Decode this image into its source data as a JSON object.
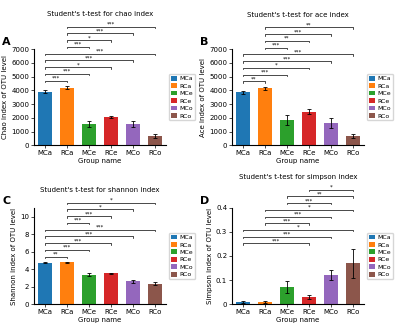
{
  "chart_data": [
    {
      "type": "bar",
      "panel_label": "A",
      "title": "Student's t-test for chao index",
      "x_label": "Group name",
      "y_label": "Chao index of OTU level",
      "categories": [
        "MCa",
        "RCa",
        "MCe",
        "RCe",
        "MCo",
        "RCo"
      ],
      "values": [
        3900,
        4200,
        1550,
        2050,
        1550,
        700
      ],
      "errors": [
        100,
        120,
        200,
        100,
        250,
        150
      ],
      "colors": [
        "#1f77b4",
        "#ff7f0e",
        "#2ca02c",
        "#d62728",
        "#9467bd",
        "#8c564b"
      ],
      "legend_labels": [
        "MCa",
        "RCa",
        "MCe",
        "RCe",
        "MCo",
        "RCo"
      ],
      "legend": "right",
      "ylim": [
        0,
        7000
      ],
      "yticks": [
        0,
        1000,
        2000,
        3000,
        4000,
        5000,
        6000,
        7000
      ],
      "annotations": [
        {
          "text": "***",
          "between": [
            "MCa",
            "RCa"
          ]
        },
        {
          "text": "***",
          "between": [
            "MCa",
            "MCe"
          ]
        },
        {
          "text": "*",
          "between": [
            "MCa",
            "RCe"
          ]
        },
        {
          "text": "***",
          "between": [
            "MCa",
            "MCo"
          ]
        },
        {
          "text": "***",
          "between": [
            "MCa",
            "RCo"
          ]
        },
        {
          "text": "***",
          "between": [
            "RCa",
            "MCe"
          ]
        },
        {
          "text": "*",
          "between": [
            "RCa",
            "RCe"
          ]
        },
        {
          "text": "***",
          "between": [
            "RCa",
            "MCo"
          ]
        },
        {
          "text": "***",
          "between": [
            "RCa",
            "RCo"
          ]
        }
      ]
    },
    {
      "type": "bar",
      "panel_label": "B",
      "title": "Student's t-test for ace index",
      "x_label": "Group name",
      "y_label": "Ace index of OTU level",
      "categories": [
        "MCa",
        "RCa",
        "MCe",
        "RCe",
        "MCo",
        "RCo"
      ],
      "values": [
        3850,
        4150,
        1850,
        2450,
        1600,
        700
      ],
      "errors": [
        100,
        120,
        350,
        200,
        350,
        150
      ],
      "colors": [
        "#1f77b4",
        "#ff7f0e",
        "#2ca02c",
        "#d62728",
        "#9467bd",
        "#8c564b"
      ],
      "legend_labels": [
        "MCa",
        "RCa",
        "MCe",
        "RCe",
        "MCo",
        "RCo"
      ],
      "legend": "right",
      "ylim": [
        0,
        7000
      ],
      "yticks": [
        0,
        1000,
        2000,
        3000,
        4000,
        5000,
        6000,
        7000
      ],
      "annotations": [
        {
          "text": "**",
          "between": [
            "MCa",
            "RCa"
          ]
        },
        {
          "text": "***",
          "between": [
            "MCa",
            "MCe"
          ]
        },
        {
          "text": "*",
          "between": [
            "MCa",
            "RCe"
          ]
        },
        {
          "text": "***",
          "between": [
            "MCa",
            "MCo"
          ]
        },
        {
          "text": "***",
          "between": [
            "MCa",
            "RCo"
          ]
        },
        {
          "text": "***",
          "between": [
            "RCa",
            "MCe"
          ]
        },
        {
          "text": "**",
          "between": [
            "RCa",
            "RCe"
          ]
        },
        {
          "text": "***",
          "between": [
            "RCa",
            "MCo"
          ]
        },
        {
          "text": "**",
          "between": [
            "RCa",
            "RCo"
          ]
        }
      ]
    },
    {
      "type": "bar",
      "panel_label": "C",
      "title": "Student's t-test for shannon index",
      "x_label": "Group name",
      "y_label": "Shannon index of OTU level",
      "categories": [
        "MCa",
        "RCa",
        "MCe",
        "RCe",
        "MCo",
        "RCo"
      ],
      "values": [
        4.75,
        4.78,
        3.35,
        3.5,
        2.6,
        2.35
      ],
      "errors": [
        0.05,
        0.05,
        0.15,
        0.05,
        0.18,
        0.2
      ],
      "colors": [
        "#1f77b4",
        "#ff7f0e",
        "#2ca02c",
        "#d62728",
        "#9467bd",
        "#8c564b"
      ],
      "legend_labels": [
        "MCa",
        "RCa",
        "MCe",
        "RCe",
        "MCo",
        "RCo"
      ],
      "legend": "right",
      "ylim": [
        0,
        11
      ],
      "yticks": [
        0,
        2,
        4,
        6,
        8,
        10
      ],
      "annotations": [
        {
          "text": "**",
          "between": [
            "MCa",
            "RCa"
          ]
        },
        {
          "text": "***",
          "between": [
            "MCa",
            "MCe"
          ]
        },
        {
          "text": "***",
          "between": [
            "MCa",
            "RCe"
          ]
        },
        {
          "text": "***",
          "between": [
            "MCa",
            "MCo"
          ]
        },
        {
          "text": "***",
          "between": [
            "MCa",
            "RCo"
          ]
        },
        {
          "text": "***",
          "between": [
            "RCa",
            "MCe"
          ]
        },
        {
          "text": "***",
          "between": [
            "RCa",
            "RCe"
          ]
        },
        {
          "text": "*",
          "between": [
            "RCa",
            "MCo"
          ]
        },
        {
          "text": "*",
          "between": [
            "RCa",
            "RCo"
          ]
        }
      ]
    },
    {
      "type": "bar",
      "panel_label": "D",
      "title": "Student's t-test for simpson index",
      "x_label": "Group name",
      "y_label": "Simpson index of OTU level",
      "categories": [
        "MCa",
        "RCa",
        "MCe",
        "RCe",
        "MCo",
        "RCo"
      ],
      "values": [
        0.01,
        0.01,
        0.07,
        0.03,
        0.12,
        0.17
      ],
      "errors": [
        0.005,
        0.005,
        0.025,
        0.008,
        0.02,
        0.06
      ],
      "colors": [
        "#1f77b4",
        "#ff7f0e",
        "#2ca02c",
        "#d62728",
        "#9467bd",
        "#8c564b"
      ],
      "legend_labels": [
        "MCa",
        "RCa",
        "MCe",
        "RCe",
        "MCo",
        "RCo"
      ],
      "legend": "right",
      "ylim": [
        0,
        0.4
      ],
      "yticks": [
        0,
        0.1,
        0.2,
        0.3,
        0.4
      ],
      "annotations": [
        {
          "text": "***",
          "between": [
            "MCa",
            "RCe"
          ]
        },
        {
          "text": "***",
          "between": [
            "MCa",
            "MCo"
          ]
        },
        {
          "text": "*",
          "between": [
            "MCa",
            "RCo"
          ]
        },
        {
          "text": "***",
          "between": [
            "RCa",
            "RCe"
          ]
        },
        {
          "text": "***",
          "between": [
            "RCa",
            "MCo"
          ]
        },
        {
          "text": "*",
          "between": [
            "RCa",
            "RCo"
          ]
        },
        {
          "text": "***",
          "between": [
            "MCe",
            "MCo"
          ]
        },
        {
          "text": "**",
          "between": [
            "MCe",
            "RCo"
          ]
        },
        {
          "text": "*",
          "between": [
            "RCe",
            "RCo"
          ]
        }
      ]
    }
  ]
}
